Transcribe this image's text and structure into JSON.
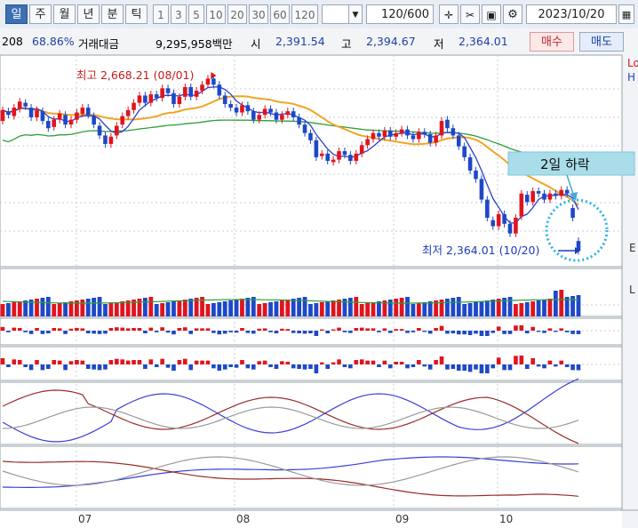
{
  "toolbar": {
    "period_tabs": [
      "일",
      "주",
      "월",
      "년",
      "분",
      "틱"
    ],
    "active_tab": "일",
    "intervals": [
      "1",
      "3",
      "5",
      "10",
      "20",
      "30",
      "60",
      "120"
    ],
    "count_value": "120",
    "count_max": "/600",
    "date": "2023/10/20",
    "icons": [
      "dropdown-arrow-icon",
      "crosshair-icon",
      "scissors-icon",
      "save-icon",
      "gear-icon",
      "calendar-icon"
    ]
  },
  "infobar": {
    "code_tail": "208",
    "pct": "68.86%",
    "trading_value_label": "거래대금",
    "trading_value": "9,295,958백만",
    "open_label": "시",
    "open": "2,391.54",
    "high_label": "고",
    "high": "2,394.67",
    "low_label": "저",
    "low": "2,364.01",
    "buy_label": "매수",
    "sell_label": "매도"
  },
  "right_edge_labels": [
    "Lo",
    "H",
    "E",
    "L"
  ],
  "annotations": {
    "high_note": "최고 2,668.21 (08/01)",
    "low_note": "최저 2,364.01 (10/20)",
    "callout": "2일 하락"
  },
  "chart_data": {
    "type": "candlestick",
    "title": "",
    "x_month_labels": [
      "07",
      "08",
      "09",
      "10"
    ],
    "notable_points": [
      {
        "label": "high",
        "date": "08/01",
        "value": 2668.21
      },
      {
        "label": "low",
        "date": "10/20",
        "value": 2364.01
      }
    ],
    "last_candle": {
      "date": "2023/10/20",
      "open": 2391.54,
      "high": 2394.67,
      "low": 2364.01
    },
    "ohlc_series": [
      {
        "o": 2590,
        "c": 2608
      },
      {
        "o": 2606,
        "c": 2600
      },
      {
        "o": 2598,
        "c": 2612
      },
      {
        "o": 2610,
        "c": 2622
      },
      {
        "o": 2620,
        "c": 2614
      },
      {
        "o": 2612,
        "c": 2596
      },
      {
        "o": 2596,
        "c": 2608
      },
      {
        "o": 2606,
        "c": 2590
      },
      {
        "o": 2590,
        "c": 2578
      },
      {
        "o": 2580,
        "c": 2592
      },
      {
        "o": 2592,
        "c": 2602
      },
      {
        "o": 2600,
        "c": 2584
      },
      {
        "o": 2584,
        "c": 2592
      },
      {
        "o": 2592,
        "c": 2604
      },
      {
        "o": 2602,
        "c": 2612
      },
      {
        "o": 2612,
        "c": 2600
      },
      {
        "o": 2598,
        "c": 2584
      },
      {
        "o": 2582,
        "c": 2566
      },
      {
        "o": 2566,
        "c": 2552
      },
      {
        "o": 2552,
        "c": 2564
      },
      {
        "o": 2566,
        "c": 2582
      },
      {
        "o": 2584,
        "c": 2598
      },
      {
        "o": 2598,
        "c": 2608
      },
      {
        "o": 2608,
        "c": 2620
      },
      {
        "o": 2620,
        "c": 2632
      },
      {
        "o": 2632,
        "c": 2620
      },
      {
        "o": 2620,
        "c": 2634
      },
      {
        "o": 2634,
        "c": 2628
      },
      {
        "o": 2628,
        "c": 2644
      },
      {
        "o": 2644,
        "c": 2636
      },
      {
        "o": 2636,
        "c": 2618
      },
      {
        "o": 2618,
        "c": 2630
      },
      {
        "o": 2630,
        "c": 2646
      },
      {
        "o": 2646,
        "c": 2630
      },
      {
        "o": 2630,
        "c": 2640
      },
      {
        "o": 2640,
        "c": 2650
      },
      {
        "o": 2650,
        "c": 2660
      },
      {
        "o": 2660,
        "c": 2650
      },
      {
        "o": 2650,
        "c": 2632
      },
      {
        "o": 2632,
        "c": 2618
      },
      {
        "o": 2618,
        "c": 2612
      },
      {
        "o": 2612,
        "c": 2604
      },
      {
        "o": 2604,
        "c": 2616
      },
      {
        "o": 2616,
        "c": 2606
      },
      {
        "o": 2606,
        "c": 2592
      },
      {
        "o": 2592,
        "c": 2600
      },
      {
        "o": 2600,
        "c": 2610
      },
      {
        "o": 2610,
        "c": 2604
      },
      {
        "o": 2604,
        "c": 2592
      },
      {
        "o": 2592,
        "c": 2600
      },
      {
        "o": 2600,
        "c": 2606
      },
      {
        "o": 2606,
        "c": 2596
      },
      {
        "o": 2596,
        "c": 2584
      },
      {
        "o": 2584,
        "c": 2570
      },
      {
        "o": 2570,
        "c": 2558
      },
      {
        "o": 2558,
        "c": 2530
      },
      {
        "o": 2532,
        "c": 2536
      },
      {
        "o": 2536,
        "c": 2524
      },
      {
        "o": 2522,
        "c": 2526
      },
      {
        "o": 2526,
        "c": 2540
      },
      {
        "o": 2540,
        "c": 2534
      },
      {
        "o": 2534,
        "c": 2524
      },
      {
        "o": 2524,
        "c": 2536
      },
      {
        "o": 2536,
        "c": 2550
      },
      {
        "o": 2550,
        "c": 2560
      },
      {
        "o": 2560,
        "c": 2570
      },
      {
        "o": 2570,
        "c": 2564
      },
      {
        "o": 2564,
        "c": 2574
      },
      {
        "o": 2574,
        "c": 2564
      },
      {
        "o": 2564,
        "c": 2570
      },
      {
        "o": 2570,
        "c": 2576
      },
      {
        "o": 2576,
        "c": 2566
      },
      {
        "o": 2566,
        "c": 2560
      },
      {
        "o": 2560,
        "c": 2572
      },
      {
        "o": 2572,
        "c": 2568
      },
      {
        "o": 2568,
        "c": 2554
      },
      {
        "o": 2554,
        "c": 2566
      },
      {
        "o": 2566,
        "c": 2590
      },
      {
        "o": 2592,
        "c": 2578
      },
      {
        "o": 2578,
        "c": 2566
      },
      {
        "o": 2566,
        "c": 2548
      },
      {
        "o": 2548,
        "c": 2530
      },
      {
        "o": 2530,
        "c": 2508
      },
      {
        "o": 2508,
        "c": 2494
      },
      {
        "o": 2494,
        "c": 2460
      },
      {
        "o": 2460,
        "c": 2430
      },
      {
        "o": 2426,
        "c": 2416
      },
      {
        "o": 2416,
        "c": 2436
      },
      {
        "o": 2436,
        "c": 2420
      },
      {
        "o": 2420,
        "c": 2404
      },
      {
        "o": 2404,
        "c": 2430
      },
      {
        "o": 2432,
        "c": 2470
      },
      {
        "o": 2468,
        "c": 2456
      },
      {
        "o": 2456,
        "c": 2474
      },
      {
        "o": 2474,
        "c": 2470
      },
      {
        "o": 2470,
        "c": 2460
      },
      {
        "o": 2460,
        "c": 2470
      },
      {
        "o": 2470,
        "c": 2466
      },
      {
        "o": 2466,
        "c": 2476
      },
      {
        "o": 2476,
        "c": 2470
      },
      {
        "o": 2446,
        "c": 2430
      },
      {
        "o": 2391.54,
        "c": 2375
      }
    ]
  }
}
